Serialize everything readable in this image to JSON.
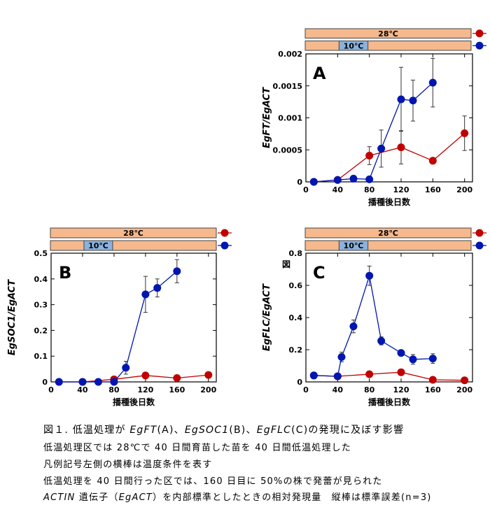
{
  "colors": {
    "warm_bar": "#f5b98d",
    "cool_bar": "#8bb2de",
    "series_28": "#c00000",
    "series_10": "#0016b0",
    "bar_border": "#444444"
  },
  "chart_data": [
    {
      "type": "line",
      "panel_letter": "A",
      "ylabel": "EgFT/EgACT",
      "xlabel": "播種後日数",
      "xlim": [
        0,
        210
      ],
      "ylim": [
        0,
        0.002
      ],
      "x_ticks": [
        0,
        40,
        80,
        120,
        160,
        200
      ],
      "y_ticks": [
        0,
        0.0005,
        0.001,
        0.0015,
        0.002
      ],
      "y_tick_labels": [
        "0",
        "0.0005",
        "0.001",
        "0.0015",
        "0.002"
      ],
      "legend_bars": [
        {
          "label": "28℃",
          "cool_segment": null,
          "series_color": "series_28"
        },
        {
          "label": "10℃",
          "cool_segment": [
            40,
            80
          ],
          "series_color": "series_10"
        }
      ],
      "series": [
        {
          "color": "series_28",
          "x": [
            10,
            40,
            80,
            120,
            160,
            200
          ],
          "y": [
            0.0,
            3e-05,
            0.00041,
            0.00054,
            0.00033,
            0.00076
          ],
          "err": [
            0,
            0,
            0.00014,
            0.00026,
            0,
            0.00027
          ]
        },
        {
          "color": "series_10",
          "x": [
            10,
            40,
            60,
            80,
            95,
            120,
            135,
            160
          ],
          "y": [
            0.0,
            3e-05,
            5e-05,
            4e-05,
            0.00052,
            0.00129,
            0.00127,
            0.00155
          ],
          "err": [
            0,
            0,
            0,
            0,
            0.00029,
            0.0005,
            0.00032,
            0.00038
          ]
        }
      ]
    },
    {
      "type": "line",
      "panel_letter": "B",
      "ylabel": "EgSOC1/EgACT",
      "xlabel": "播種後日数",
      "xlim": [
        0,
        210
      ],
      "ylim": [
        0,
        0.5
      ],
      "x_ticks": [
        0,
        40,
        80,
        120,
        160,
        200
      ],
      "y_ticks": [
        0,
        0.1,
        0.2,
        0.3,
        0.4,
        0.5
      ],
      "y_tick_labels": [
        "0",
        "0.1",
        "0.2",
        "0.3",
        "0.4",
        "0.5"
      ],
      "legend_bars": [
        {
          "label": "28℃",
          "cool_segment": null,
          "series_color": "series_28"
        },
        {
          "label": "10℃",
          "cool_segment": [
            40,
            80
          ],
          "series_color": "series_10"
        }
      ],
      "series": [
        {
          "color": "series_28",
          "x": [
            10,
            40,
            80,
            120,
            160,
            200
          ],
          "y": [
            0.0,
            0.0,
            0.01,
            0.025,
            0.015,
            0.027
          ],
          "err": [
            0,
            0,
            0,
            0,
            0,
            0
          ]
        },
        {
          "color": "series_10",
          "x": [
            10,
            40,
            60,
            80,
            95,
            120,
            135,
            160
          ],
          "y": [
            0.0,
            0.0,
            0.0,
            0.0,
            0.055,
            0.34,
            0.365,
            0.43
          ],
          "err": [
            0,
            0,
            0,
            0,
            0.025,
            0.07,
            0.035,
            0.045
          ]
        }
      ]
    },
    {
      "type": "line",
      "panel_letter": "C",
      "ylabel": "EgFLC/EgACT",
      "xlabel": "播種後日数",
      "xlim": [
        0,
        210
      ],
      "ylim": [
        0,
        0.8
      ],
      "x_ticks": [
        0,
        40,
        80,
        120,
        160,
        200
      ],
      "y_ticks": [
        0,
        0.2,
        0.4,
        0.6,
        0.8
      ],
      "y_tick_labels": [
        "0",
        "0.2",
        "0.4",
        "0.6",
        "0.8"
      ],
      "annotation": "図",
      "legend_bars": [
        {
          "label": "28℃",
          "cool_segment": null,
          "series_color": "series_28"
        },
        {
          "label": "10℃",
          "cool_segment": [
            40,
            80
          ],
          "series_color": "series_10"
        }
      ],
      "series": [
        {
          "color": "series_28",
          "x": [
            10,
            40,
            80,
            120,
            160,
            200
          ],
          "y": [
            0.04,
            0.035,
            0.048,
            0.06,
            0.013,
            0.01
          ],
          "err": [
            0,
            0,
            0,
            0,
            0,
            0
          ]
        },
        {
          "color": "series_10",
          "x": [
            10,
            40,
            45,
            60,
            80,
            95,
            120,
            135,
            160
          ],
          "y": [
            0.04,
            0.035,
            0.155,
            0.345,
            0.66,
            0.255,
            0.18,
            0.14,
            0.145
          ],
          "err": [
            0,
            0,
            0.03,
            0.04,
            0.06,
            0.025,
            0,
            0.03,
            0.03
          ]
        }
      ]
    }
  ],
  "caption": {
    "line1_prefix": "図１. 低温処理が ",
    "line1_gene1": "EgFT",
    "line1_mid1": "(A)、",
    "line1_gene2": "EgSOC1",
    "line1_mid2": "(B)、",
    "line1_gene3": "EgFLC",
    "line1_suffix": "(C)の発現に及ぼす影響",
    "line2": "低温処理区では 28℃で 40 日間育苗した苗を 40 日間低温処理した",
    "line3": "凡例記号左側の横棒は温度条件を表す",
    "line4": "低温処理を 40 日間行った区では、160 日目に 50%の株で発蕾が見られた",
    "line5_gene": "ACTIN",
    "line5_mid1": " 遺伝子（",
    "line5_gene2": "EgACT",
    "line5_rest": "）を内部標準としたときの相対発現量　縦棒は標準誤差(n=3)"
  }
}
